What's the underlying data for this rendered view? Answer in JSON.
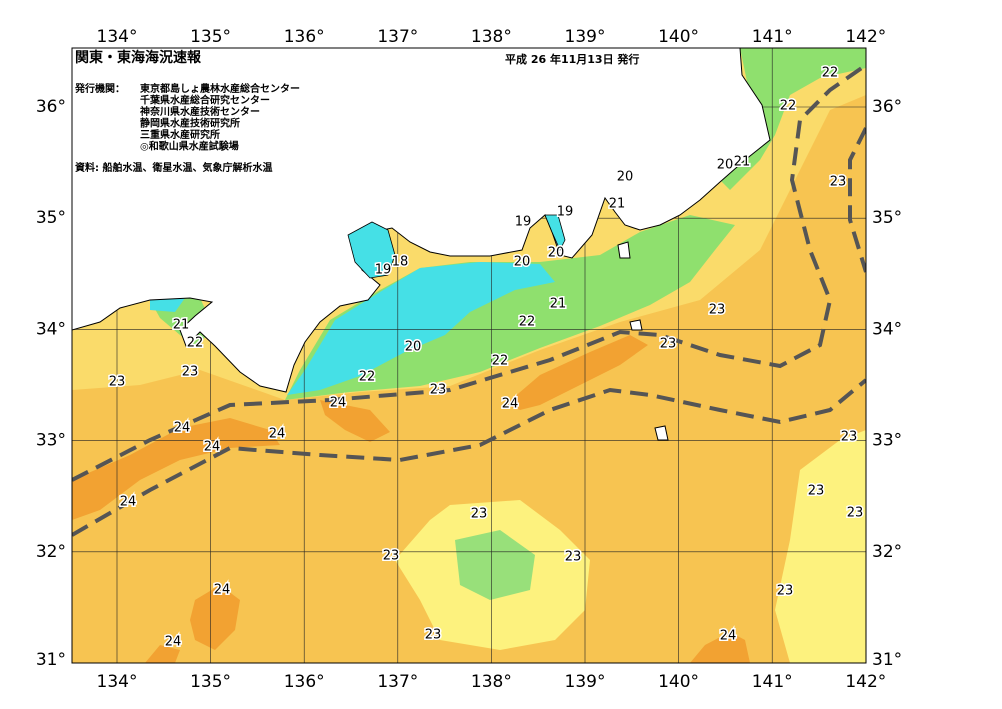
{
  "header": {
    "title": "関東・東海海況速報",
    "date": "平成 26 年11月13日 発行"
  },
  "issuers": {
    "label": "発行機関：",
    "items": [
      "東京都島しょ農林水産総合センター",
      "千葉県水産総合研究センター",
      "神奈川県水産技術センター",
      "静岡県水産技術研究所",
      "三重県水産研究所",
      "◎和歌山県水産試験場"
    ]
  },
  "source": "資料: 船舶水温、衛星水温、気象庁解析水温",
  "axes": {
    "longitude": [
      "134°",
      "135°",
      "136°",
      "137°",
      "138°",
      "139°",
      "140°",
      "141°",
      "142°"
    ],
    "latitude": [
      "36°",
      "35°",
      "34°",
      "33°",
      "32°",
      "31°"
    ]
  },
  "contour_labels": [
    "22",
    "22",
    "20",
    "21",
    "23",
    "20",
    "21",
    "19",
    "19",
    "20",
    "20",
    "19",
    "18",
    "21",
    "22",
    "23",
    "21",
    "22",
    "20",
    "23",
    "23",
    "22",
    "22",
    "23",
    "23",
    "24",
    "24",
    "24",
    "24",
    "24",
    "23",
    "24",
    "23",
    "23",
    "23",
    "23",
    "23",
    "24",
    "23",
    "23",
    "24",
    "24"
  ]
}
